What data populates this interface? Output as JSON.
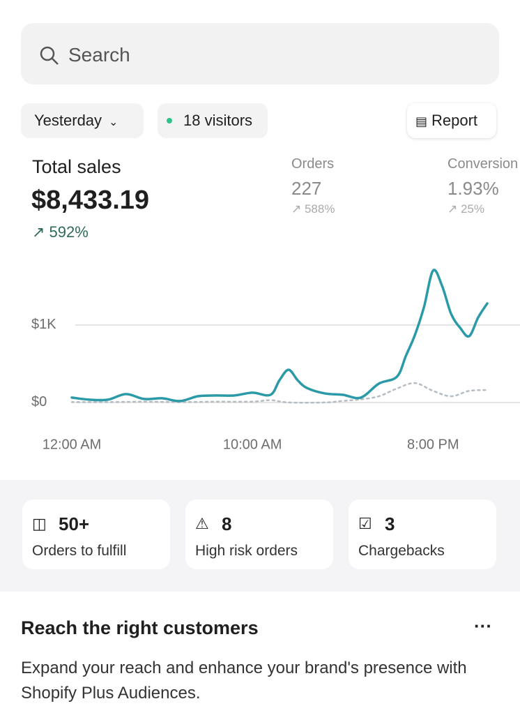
{
  "search": {
    "placeholder": "Search"
  },
  "filters": {
    "period": "Yesterday",
    "visitors": "18 visitors",
    "report": "Report"
  },
  "metrics": {
    "total_sales": {
      "label": "Total sales",
      "value": "$8,433.19",
      "change": "592%"
    },
    "orders": {
      "label": "Orders",
      "value": "227",
      "change": "588%"
    },
    "conversion": {
      "label": "Conversion",
      "value": "1.93%",
      "change": "25%"
    }
  },
  "chart_data": {
    "type": "line",
    "xticks": [
      {
        "value": 0,
        "label": "12:00 AM"
      },
      {
        "value": 10,
        "label": "10:00 AM"
      },
      {
        "value": 20,
        "label": "8:00 PM"
      }
    ],
    "xlim": [
      0,
      23
    ],
    "ylim": [
      -100,
      1900
    ],
    "yticks": [
      {
        "value": 0,
        "label": "$0"
      },
      {
        "value": 1000,
        "label": "$1K"
      }
    ],
    "grid": true,
    "series": [
      {
        "color": "#2b9aa8",
        "style": "solid",
        "x": [
          0,
          1,
          2,
          3,
          4,
          5,
          6,
          7,
          8,
          9,
          10,
          11,
          11.5,
          12,
          12.5,
          13,
          14,
          15,
          16,
          17,
          18,
          18.5,
          19,
          19.5,
          20,
          20.5,
          21,
          21.5,
          22,
          22.5,
          23
        ],
        "values": [
          63,
          36,
          36,
          108,
          45,
          54,
          18,
          81,
          90,
          90,
          126,
          99,
          288,
          423,
          288,
          189,
          117,
          99,
          63,
          243,
          333,
          604,
          874,
          1234,
          1703,
          1505,
          1144,
          964,
          856,
          1099,
          1279
        ]
      },
      {
        "color": "#b5bcc2",
        "style": "dotted",
        "x": [
          0,
          2,
          4,
          6,
          8,
          10,
          11,
          12,
          14,
          15,
          16,
          17,
          18,
          19,
          20,
          21,
          22,
          23
        ],
        "values": [
          5,
          5,
          10,
          5,
          10,
          10,
          30,
          0,
          0,
          20,
          40,
          80,
          180,
          250,
          150,
          80,
          150,
          160
        ]
      }
    ]
  },
  "cards": [
    {
      "value": "50+",
      "label": "Orders to fulfill"
    },
    {
      "value": "8",
      "label": "High risk orders"
    },
    {
      "value": "3",
      "label": "Chargebacks"
    }
  ],
  "promo": {
    "title": "Reach the right customers",
    "body": "Expand your reach and enhance your brand's presence with Shopify Plus Audiences."
  }
}
